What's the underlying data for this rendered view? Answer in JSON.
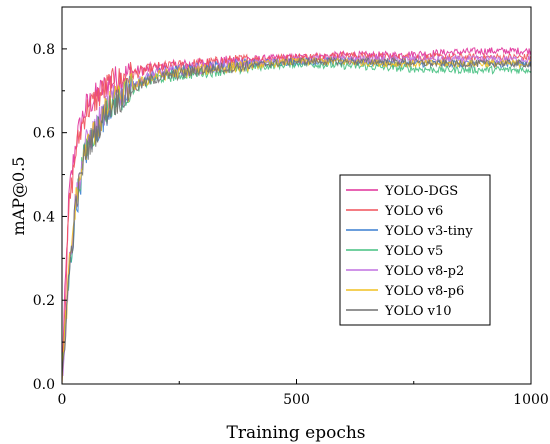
{
  "chart_data": {
    "type": "line",
    "title": "",
    "xlabel": "Training epochs",
    "ylabel": "mAP@0.5",
    "xlim": [
      0,
      1000
    ],
    "ylim": [
      0,
      0.9
    ],
    "x_ticks": [
      "0",
      "500",
      "1000"
    ],
    "y_ticks": [
      "0.0",
      "0.2",
      "0.4",
      "0.6",
      "0.8"
    ],
    "grid": false,
    "legend": "center-right",
    "series": [
      {
        "name": "YOLO-DGS",
        "color": "#e0309a",
        "points": [
          [
            0,
            0.03
          ],
          [
            15,
            0.45
          ],
          [
            30,
            0.58
          ],
          [
            50,
            0.66
          ],
          [
            100,
            0.72
          ],
          [
            150,
            0.745
          ],
          [
            200,
            0.755
          ],
          [
            300,
            0.765
          ],
          [
            400,
            0.775
          ],
          [
            500,
            0.78
          ],
          [
            600,
            0.785
          ],
          [
            700,
            0.785
          ],
          [
            800,
            0.79
          ],
          [
            900,
            0.795
          ],
          [
            1000,
            0.795
          ]
        ]
      },
      {
        "name": "YOLO v6",
        "color": "#f0505a",
        "points": [
          [
            0,
            0.02
          ],
          [
            15,
            0.42
          ],
          [
            30,
            0.56
          ],
          [
            50,
            0.65
          ],
          [
            100,
            0.715
          ],
          [
            150,
            0.74
          ],
          [
            200,
            0.755
          ],
          [
            300,
            0.765
          ],
          [
            400,
            0.775
          ],
          [
            500,
            0.78
          ],
          [
            600,
            0.785
          ],
          [
            700,
            0.78
          ],
          [
            800,
            0.78
          ],
          [
            900,
            0.78
          ],
          [
            1000,
            0.78
          ]
        ]
      },
      {
        "name": "YOLO v3-tiny",
        "color": "#3a7fd0",
        "points": [
          [
            0,
            0.01
          ],
          [
            15,
            0.25
          ],
          [
            30,
            0.42
          ],
          [
            50,
            0.55
          ],
          [
            100,
            0.66
          ],
          [
            150,
            0.71
          ],
          [
            200,
            0.74
          ],
          [
            300,
            0.755
          ],
          [
            400,
            0.765
          ],
          [
            500,
            0.77
          ],
          [
            600,
            0.77
          ],
          [
            700,
            0.765
          ],
          [
            800,
            0.765
          ],
          [
            900,
            0.765
          ],
          [
            1000,
            0.765
          ]
        ]
      },
      {
        "name": "YOLO v5",
        "color": "#45c080",
        "points": [
          [
            0,
            0.01
          ],
          [
            15,
            0.26
          ],
          [
            30,
            0.44
          ],
          [
            50,
            0.56
          ],
          [
            100,
            0.665
          ],
          [
            150,
            0.705
          ],
          [
            200,
            0.73
          ],
          [
            300,
            0.745
          ],
          [
            400,
            0.755
          ],
          [
            500,
            0.765
          ],
          [
            600,
            0.76
          ],
          [
            700,
            0.755
          ],
          [
            800,
            0.75
          ],
          [
            900,
            0.75
          ],
          [
            1000,
            0.75
          ]
        ]
      },
      {
        "name": "YOLO v8-p2",
        "color": "#c070e0",
        "points": [
          [
            0,
            0.01
          ],
          [
            15,
            0.28
          ],
          [
            30,
            0.45
          ],
          [
            50,
            0.57
          ],
          [
            100,
            0.67
          ],
          [
            150,
            0.715
          ],
          [
            200,
            0.74
          ],
          [
            300,
            0.755
          ],
          [
            400,
            0.765
          ],
          [
            500,
            0.775
          ],
          [
            600,
            0.775
          ],
          [
            700,
            0.775
          ],
          [
            800,
            0.775
          ],
          [
            900,
            0.775
          ],
          [
            1000,
            0.775
          ]
        ]
      },
      {
        "name": "YOLO v8-p6",
        "color": "#f0c020",
        "points": [
          [
            0,
            0.01
          ],
          [
            15,
            0.27
          ],
          [
            30,
            0.44
          ],
          [
            50,
            0.56
          ],
          [
            100,
            0.665
          ],
          [
            150,
            0.71
          ],
          [
            200,
            0.735
          ],
          [
            300,
            0.75
          ],
          [
            400,
            0.76
          ],
          [
            500,
            0.77
          ],
          [
            600,
            0.77
          ],
          [
            700,
            0.765
          ],
          [
            800,
            0.765
          ],
          [
            900,
            0.765
          ],
          [
            1000,
            0.765
          ]
        ]
      },
      {
        "name": "YOLO v10",
        "color": "#707070",
        "points": [
          [
            0,
            0.01
          ],
          [
            15,
            0.26
          ],
          [
            30,
            0.43
          ],
          [
            50,
            0.555
          ],
          [
            100,
            0.66
          ],
          [
            150,
            0.705
          ],
          [
            200,
            0.73
          ],
          [
            300,
            0.75
          ],
          [
            400,
            0.76
          ],
          [
            500,
            0.77
          ],
          [
            600,
            0.77
          ],
          [
            700,
            0.77
          ],
          [
            800,
            0.765
          ],
          [
            900,
            0.765
          ],
          [
            1000,
            0.765
          ]
        ]
      }
    ]
  }
}
